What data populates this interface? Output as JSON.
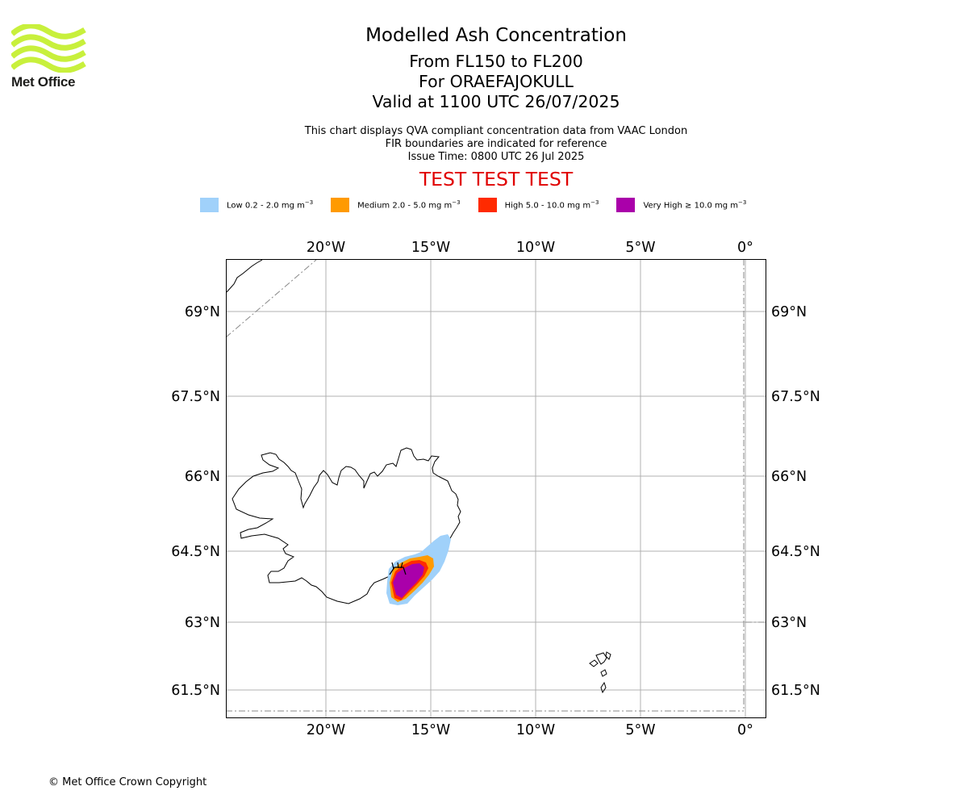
{
  "logo": {
    "name": "Met Office",
    "color": "#c8f03c"
  },
  "header": {
    "title": "Modelled Ash Concentration",
    "levels": "From FL150 to FL200",
    "volcano": "For ORAEFAJOKULL",
    "valid": "Valid at 1100 UTC 26/07/2025",
    "info1": "This chart displays QVA compliant concentration data from VAAC London",
    "info2": "FIR boundaries are indicated for reference",
    "issue": "Issue Time: 0800 UTC 26 Jul 2025",
    "test_banner": "TEST TEST TEST"
  },
  "legend": [
    {
      "label": "Low 0.2 - 2.0 mg m",
      "exp": "−3",
      "color": "#a0d1fa"
    },
    {
      "label": "Medium 2.0 - 5.0 mg m",
      "exp": "−3",
      "color": "#ff9a00"
    },
    {
      "label": "High 5.0 - 10.0 mg m",
      "exp": "−3",
      "color": "#ff2a00"
    },
    {
      "label": "Very High  ≥  10.0 mg m",
      "exp": "−3",
      "color": "#aa00aa"
    }
  ],
  "map": {
    "lon_ticks": [
      "20°W",
      "15°W",
      "10°W",
      "5°W",
      "0°"
    ],
    "lat_ticks": [
      "69°N",
      "67.5°N",
      "66°N",
      "64.5°N",
      "63°N",
      "61.5°N"
    ],
    "grid": true
  },
  "footer": {
    "copyright": "© Met Office Crown Copyright"
  }
}
